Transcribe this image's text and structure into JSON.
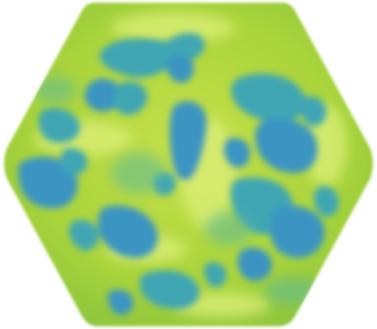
{
  "tile": {
    "shape": "hexagon",
    "pattern": "mottled-blotches",
    "colors": {
      "base_light": "#c6e04a",
      "base_mid": "#a9d43a",
      "base_shadow": "#8ec63c",
      "highlight": "#def07a",
      "blotch_teal": "#3fa6b4",
      "blotch_blue": "#3a94c2",
      "blotch_green_teal": "#5cb99a"
    }
  }
}
